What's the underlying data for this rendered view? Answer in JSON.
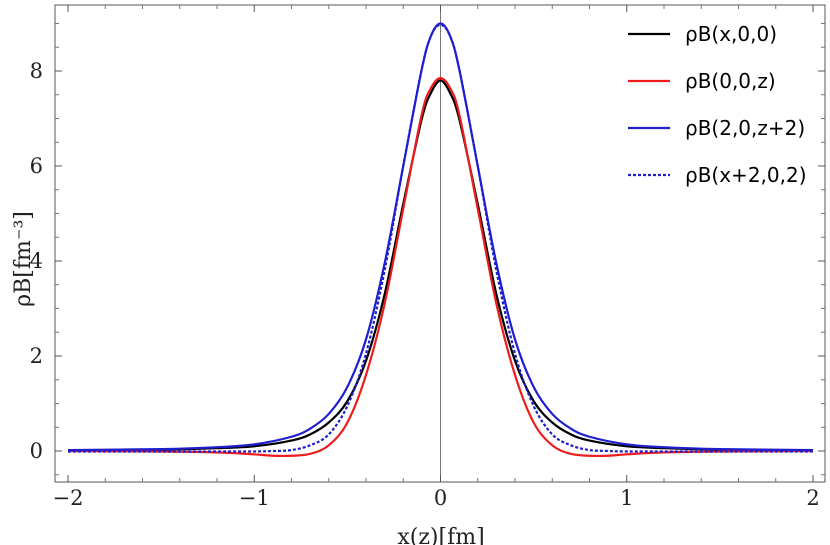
{
  "chart_data": {
    "type": "line",
    "title": "",
    "xlabel": "x(z)[fm]",
    "ylabel": "ρB[fm⁻³]",
    "xlim": [
      -2,
      2
    ],
    "ylim": [
      -0.6,
      9.4
    ],
    "x_ticks": [
      "−2",
      "−1",
      "0",
      "1",
      "2"
    ],
    "y_ticks": [
      "0",
      "2",
      "4",
      "6",
      "8"
    ],
    "legend_position": "top-right",
    "series": [
      {
        "name": "ρB(x,0,0)",
        "color": "#000000",
        "dash": "solid",
        "x": [
          -2.0,
          -1.5,
          -1.2,
          -1.0,
          -0.8,
          -0.7,
          -0.6,
          -0.5,
          -0.4,
          -0.3,
          -0.2,
          -0.1,
          -0.05,
          0.0,
          0.05,
          0.1,
          0.2,
          0.3,
          0.4,
          0.5,
          0.6,
          0.7,
          0.8,
          1.0,
          1.2,
          1.5,
          2.0
        ],
        "y": [
          0.01,
          0.03,
          0.06,
          0.1,
          0.22,
          0.35,
          0.6,
          1.05,
          1.9,
          3.3,
          5.2,
          7.0,
          7.55,
          7.8,
          7.55,
          7.0,
          5.2,
          3.3,
          1.9,
          1.05,
          0.6,
          0.35,
          0.22,
          0.1,
          0.06,
          0.03,
          0.01
        ]
      },
      {
        "name": "ρB(0,0,z)",
        "color": "#ee1c1c",
        "dash": "solid",
        "x": [
          -2.0,
          -1.5,
          -1.2,
          -1.0,
          -0.9,
          -0.8,
          -0.7,
          -0.6,
          -0.5,
          -0.4,
          -0.3,
          -0.2,
          -0.1,
          -0.05,
          0.0,
          0.05,
          0.1,
          0.2,
          0.3,
          0.4,
          0.5,
          0.6,
          0.7,
          0.8,
          0.9,
          1.0,
          1.2,
          1.5,
          2.0
        ],
        "y": [
          0.0,
          -0.01,
          -0.03,
          -0.07,
          -0.1,
          -0.1,
          -0.06,
          0.12,
          0.6,
          1.6,
          3.1,
          5.1,
          7.1,
          7.65,
          7.85,
          7.65,
          7.1,
          5.1,
          3.1,
          1.6,
          0.6,
          0.12,
          -0.06,
          -0.1,
          -0.1,
          -0.07,
          -0.03,
          -0.01,
          0.0
        ]
      },
      {
        "name": "ρB(2,0,z+2)",
        "color": "#1f1fd0",
        "dash": "solid",
        "x": [
          -2.0,
          -1.5,
          -1.2,
          -1.0,
          -0.8,
          -0.7,
          -0.6,
          -0.5,
          -0.4,
          -0.3,
          -0.2,
          -0.1,
          -0.05,
          0.0,
          0.05,
          0.1,
          0.2,
          0.3,
          0.4,
          0.5,
          0.6,
          0.7,
          0.8,
          1.0,
          1.2,
          1.5,
          2.0
        ],
        "y": [
          0.02,
          0.04,
          0.08,
          0.14,
          0.3,
          0.47,
          0.78,
          1.35,
          2.35,
          3.95,
          6.0,
          8.05,
          8.75,
          9.0,
          8.75,
          8.05,
          6.0,
          3.95,
          2.35,
          1.35,
          0.78,
          0.47,
          0.3,
          0.14,
          0.08,
          0.04,
          0.02
        ]
      },
      {
        "name": "ρB(x+2,0,2)",
        "color": "#1f1fd0",
        "dash": "dotted",
        "x": [
          -2.0,
          -1.5,
          -1.2,
          -1.0,
          -0.9,
          -0.8,
          -0.7,
          -0.6,
          -0.5,
          -0.4,
          -0.3,
          -0.2,
          -0.1,
          -0.05,
          0.0,
          0.05,
          0.1,
          0.2,
          0.3,
          0.4,
          0.5,
          0.6,
          0.7,
          0.8,
          0.9,
          1.0,
          1.2,
          1.5,
          2.0
        ],
        "y": [
          -0.01,
          -0.01,
          -0.01,
          -0.01,
          0.0,
          0.02,
          0.12,
          0.35,
          0.95,
          2.05,
          3.8,
          6.0,
          8.05,
          8.75,
          8.97,
          8.75,
          8.05,
          6.0,
          3.8,
          2.05,
          0.95,
          0.35,
          0.12,
          0.02,
          0.0,
          -0.01,
          -0.01,
          -0.01,
          -0.01
        ]
      }
    ]
  }
}
